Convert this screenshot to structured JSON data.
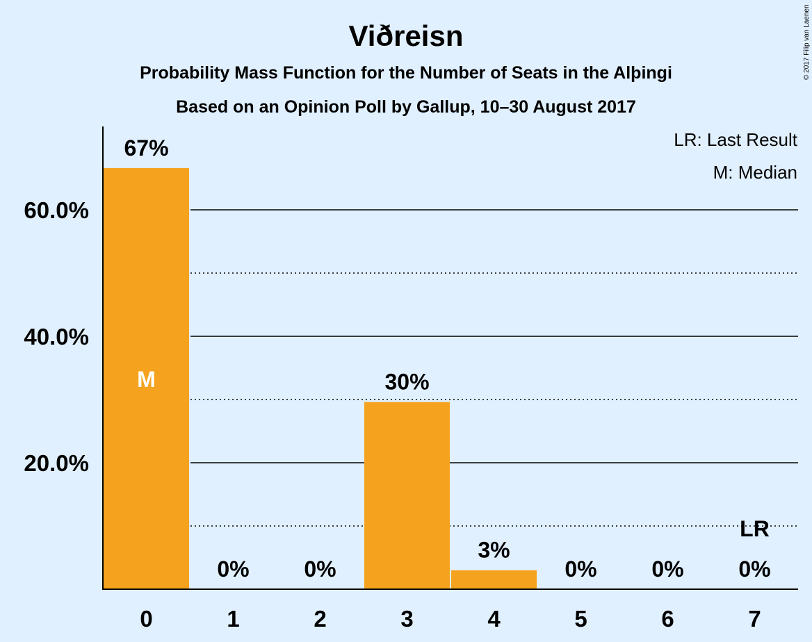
{
  "chart_data": {
    "type": "bar",
    "title": "Viðreisn",
    "subtitle": "Probability Mass Function for the Number of Seats in the Alþingi",
    "subtitle2": "Based on an Opinion Poll by Gallup, 10–30 August 2017",
    "categories": [
      "0",
      "1",
      "2",
      "3",
      "4",
      "5",
      "6",
      "7"
    ],
    "values": [
      66.6,
      0,
      0,
      29.6,
      3.0,
      0,
      0,
      0
    ],
    "value_labels": [
      "67%",
      "0%",
      "0%",
      "30%",
      "3%",
      "0%",
      "0%",
      "0%"
    ],
    "y_ticks": [
      20,
      40,
      60
    ],
    "y_tick_labels": [
      "20.0%",
      "40.0%",
      "60.0%"
    ],
    "minor_gridlines": [
      10,
      30,
      50
    ],
    "ylim": [
      0,
      73
    ],
    "median_index": 0,
    "median_marker": "M",
    "last_result_index": 7,
    "last_result_marker": "LR",
    "legend": [
      "LR: Last Result",
      "M: Median"
    ],
    "legend_position": "top-right",
    "bar_color": "#f5a31e",
    "copyright": "© 2017 Filip van Laenen"
  }
}
